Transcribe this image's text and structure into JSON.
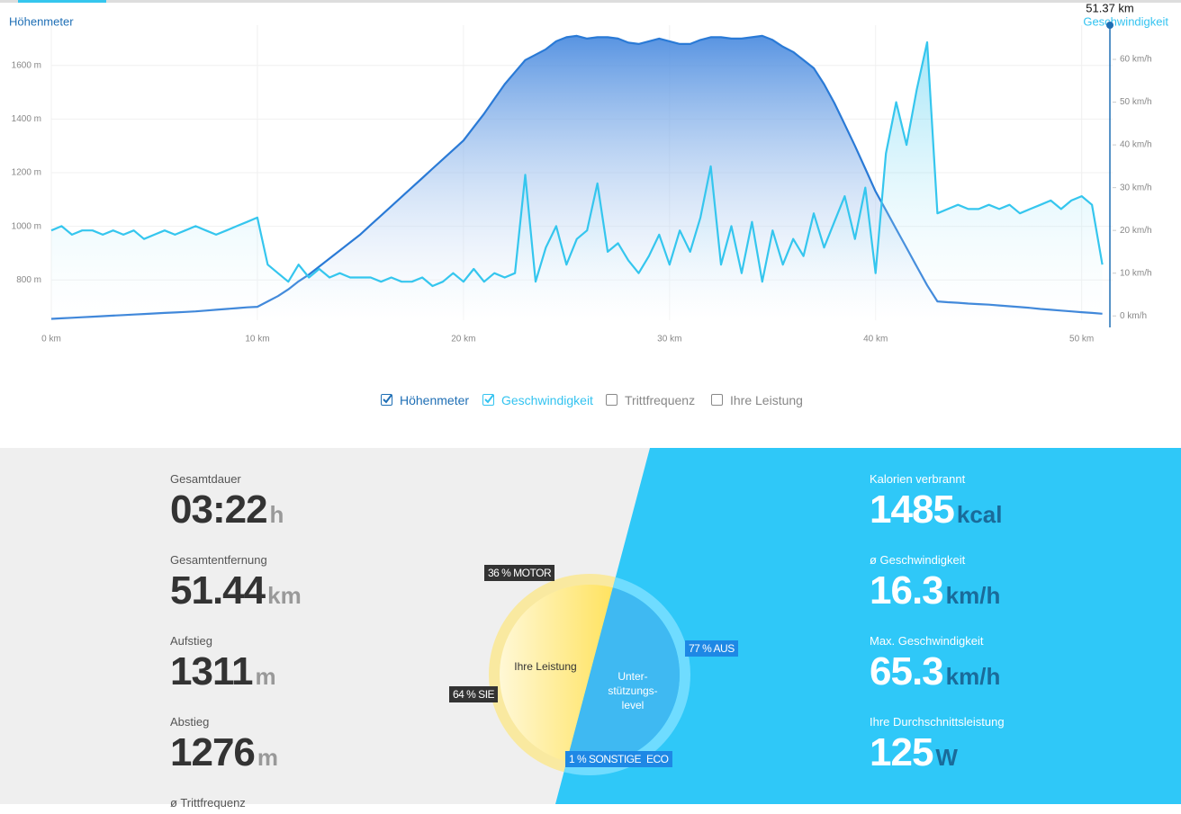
{
  "chart_data": {
    "type": "line",
    "y_axis_title": "Höhenmeter",
    "y2_axis_title": "Geschwindigkeit",
    "x": [
      0,
      0.5,
      1,
      1.5,
      2,
      2.5,
      3,
      3.5,
      4,
      4.5,
      5,
      5.5,
      6,
      6.5,
      7,
      7.5,
      8,
      8.5,
      9,
      9.5,
      10,
      10.5,
      11,
      11.5,
      12,
      12.5,
      13,
      13.5,
      14,
      14.5,
      15,
      15.5,
      16,
      16.5,
      17,
      17.5,
      18,
      18.5,
      19,
      19.5,
      20,
      20.5,
      21,
      21.5,
      22,
      22.5,
      23,
      23.5,
      24,
      24.5,
      25,
      25.5,
      26,
      26.5,
      27,
      27.5,
      28,
      28.5,
      29,
      29.5,
      30,
      30.5,
      31,
      31.5,
      32,
      32.5,
      33,
      33.5,
      34,
      34.5,
      35,
      35.5,
      36,
      36.5,
      37,
      37.5,
      38,
      38.5,
      39,
      39.5,
      40,
      40.5,
      41,
      41.5,
      42,
      42.5,
      43,
      43.5,
      44,
      44.5,
      45,
      45.5,
      46,
      46.5,
      47,
      47.5,
      48,
      48.5,
      49,
      49.5,
      50,
      50.5,
      51
    ],
    "series": [
      {
        "name": "Höhenmeter",
        "color": "#2a7ad6",
        "values": [
          655,
          657,
          659,
          661,
          663,
          665,
          667,
          669,
          671,
          673,
          675,
          677,
          679,
          681,
          683,
          686,
          689,
          692,
          695,
          698,
          700,
          720,
          740,
          765,
          795,
          820,
          850,
          880,
          910,
          940,
          970,
          1005,
          1040,
          1075,
          1110,
          1145,
          1180,
          1215,
          1250,
          1285,
          1320,
          1370,
          1420,
          1475,
          1530,
          1575,
          1620,
          1640,
          1660,
          1690,
          1705,
          1710,
          1700,
          1705,
          1705,
          1700,
          1685,
          1680,
          1690,
          1700,
          1690,
          1680,
          1680,
          1695,
          1705,
          1705,
          1700,
          1700,
          1705,
          1710,
          1695,
          1670,
          1650,
          1620,
          1590,
          1530,
          1460,
          1380,
          1300,
          1215,
          1130,
          1060,
          990,
          920,
          850,
          780,
          720,
          717,
          715,
          712,
          710,
          708,
          705,
          702,
          699,
          696,
          692,
          689,
          686,
          683,
          680,
          677,
          674
        ]
      },
      {
        "name": "Geschwindigkeit",
        "color": "#35c6ee",
        "axis": "y2",
        "values": [
          20,
          21,
          19,
          20,
          20,
          19,
          20,
          19,
          20,
          18,
          19,
          20,
          19,
          20,
          21,
          20,
          19,
          20,
          21,
          22,
          23,
          12,
          10,
          8,
          12,
          9,
          11,
          9,
          10,
          9,
          9,
          9,
          8,
          9,
          8,
          8,
          9,
          7,
          8,
          10,
          8,
          11,
          8,
          10,
          9,
          10,
          33,
          8,
          16,
          21,
          12,
          18,
          20,
          31,
          15,
          17,
          13,
          10,
          14,
          19,
          12,
          20,
          15,
          23,
          35,
          12,
          21,
          10,
          22,
          8,
          20,
          12,
          18,
          14,
          24,
          16,
          22,
          28,
          18,
          30,
          10,
          38,
          50,
          40,
          53,
          64,
          24,
          25,
          26,
          25,
          25,
          26,
          25,
          26,
          24,
          25,
          26,
          27,
          25,
          27,
          28,
          26,
          12
        ]
      }
    ],
    "xlim": [
      0,
      51.5
    ],
    "xticks": [
      {
        "value": 0,
        "label": "0 km"
      },
      {
        "value": 10,
        "label": "10 km"
      },
      {
        "value": 20,
        "label": "20 km"
      },
      {
        "value": 30,
        "label": "30 km"
      },
      {
        "value": 40,
        "label": "40 km"
      },
      {
        "value": 50,
        "label": "50 km"
      }
    ],
    "ylim": [
      650,
      1750
    ],
    "yticks": [
      {
        "value": 800,
        "label": "800 m"
      },
      {
        "value": 1000,
        "label": "1000 m"
      },
      {
        "value": 1200,
        "label": "1200 m"
      },
      {
        "value": 1400,
        "label": "1400 m"
      },
      {
        "value": 1600,
        "label": "1600 m"
      }
    ],
    "y2lim": [
      -1,
      68
    ],
    "y2ticks": [
      {
        "value": 0,
        "label": "0 km/h"
      },
      {
        "value": 10,
        "label": "10 km/h"
      },
      {
        "value": 20,
        "label": "20 km/h"
      },
      {
        "value": 30,
        "label": "30 km/h"
      },
      {
        "value": 40,
        "label": "40 km/h"
      },
      {
        "value": 50,
        "label": "50 km/h"
      },
      {
        "value": 60,
        "label": "60 km/h"
      }
    ],
    "grid": true,
    "cursor": {
      "x": 51.37,
      "label": "51.37 km"
    },
    "legend": [
      "Höhenmeter",
      "Geschwindigkeit",
      "Trittfrequenz",
      "Ihre Leistung"
    ]
  },
  "stats_left": [
    {
      "label": "Gesamtdauer",
      "value": "03:22",
      "unit": "h"
    },
    {
      "label": "Gesamtentfernung",
      "value": 51.44,
      "unit": "km"
    },
    {
      "label": "Aufstieg",
      "value": 1311,
      "unit": "m"
    },
    {
      "label": "Abstieg",
      "value": 1276,
      "unit": "m"
    },
    {
      "label": "ø Trittfrequenz"
    }
  ],
  "stats_right": [
    {
      "label": "Kalorien verbrannt",
      "value": 1485,
      "unit": "kcal"
    },
    {
      "label": "ø Geschwindigkeit",
      "value": 16.3,
      "unit": "km/h"
    },
    {
      "label": "Max. Geschwindigkeit",
      "value": 65.3,
      "unit": "km/h"
    },
    {
      "label": "Ihre Durchschnittsleistung",
      "value": 125,
      "unit": "W"
    }
  ],
  "donut": {
    "left_center": "Ihre Leistung",
    "right_center": "Unter-stützungs-level",
    "motor": "36 % MOTOR",
    "you": "64 % SIE",
    "off": "77 % AUS",
    "other": "1 % SONSTIGE",
    "eco": "ECO"
  }
}
